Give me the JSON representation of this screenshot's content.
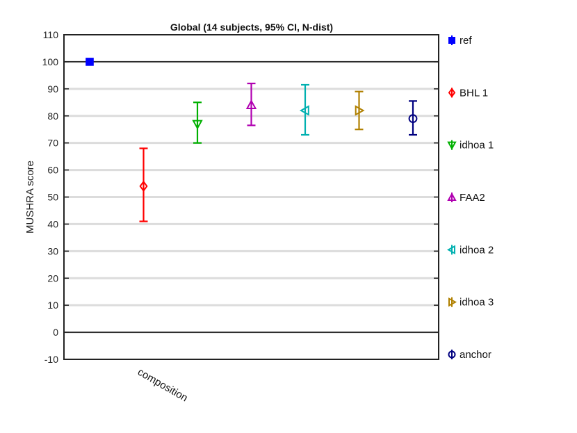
{
  "chart_data": {
    "type": "scatter",
    "title": "Global (14 subjects, 95% CI, N-dist)",
    "ylabel": "MUSHRA score",
    "xlabel": "",
    "categories": [
      "composition"
    ],
    "ylim": [
      -10,
      110
    ],
    "yticks": [
      -10,
      0,
      10,
      20,
      30,
      40,
      50,
      60,
      70,
      80,
      90,
      100,
      110
    ],
    "grid": "horizontal",
    "reference_lines": [
      0,
      100
    ],
    "legend_position": "outside-right",
    "series": [
      {
        "name": "ref",
        "mean": 100,
        "ci_low": 100,
        "ci_high": 100,
        "color": "#0000ff",
        "marker": "square"
      },
      {
        "name": "BHL 1",
        "mean": 54,
        "ci_low": 41,
        "ci_high": 68,
        "color": "#ff0000",
        "marker": "diamond"
      },
      {
        "name": "idhoa 1",
        "mean": 77,
        "ci_low": 70,
        "ci_high": 85,
        "color": "#00b000",
        "marker": "triangle-down"
      },
      {
        "name": "FAA2",
        "mean": 84,
        "ci_low": 76.5,
        "ci_high": 92,
        "color": "#b000b0",
        "marker": "triangle-up"
      },
      {
        "name": "idhoa 2",
        "mean": 82,
        "ci_low": 73,
        "ci_high": 91.5,
        "color": "#00b0b0",
        "marker": "triangle-left"
      },
      {
        "name": "idhoa 3",
        "mean": 82,
        "ci_low": 75,
        "ci_high": 89,
        "color": "#b08000",
        "marker": "triangle-right"
      },
      {
        "name": "anchor",
        "mean": 79,
        "ci_low": 73,
        "ci_high": 85.5,
        "color": "#000080",
        "marker": "circle"
      }
    ]
  }
}
